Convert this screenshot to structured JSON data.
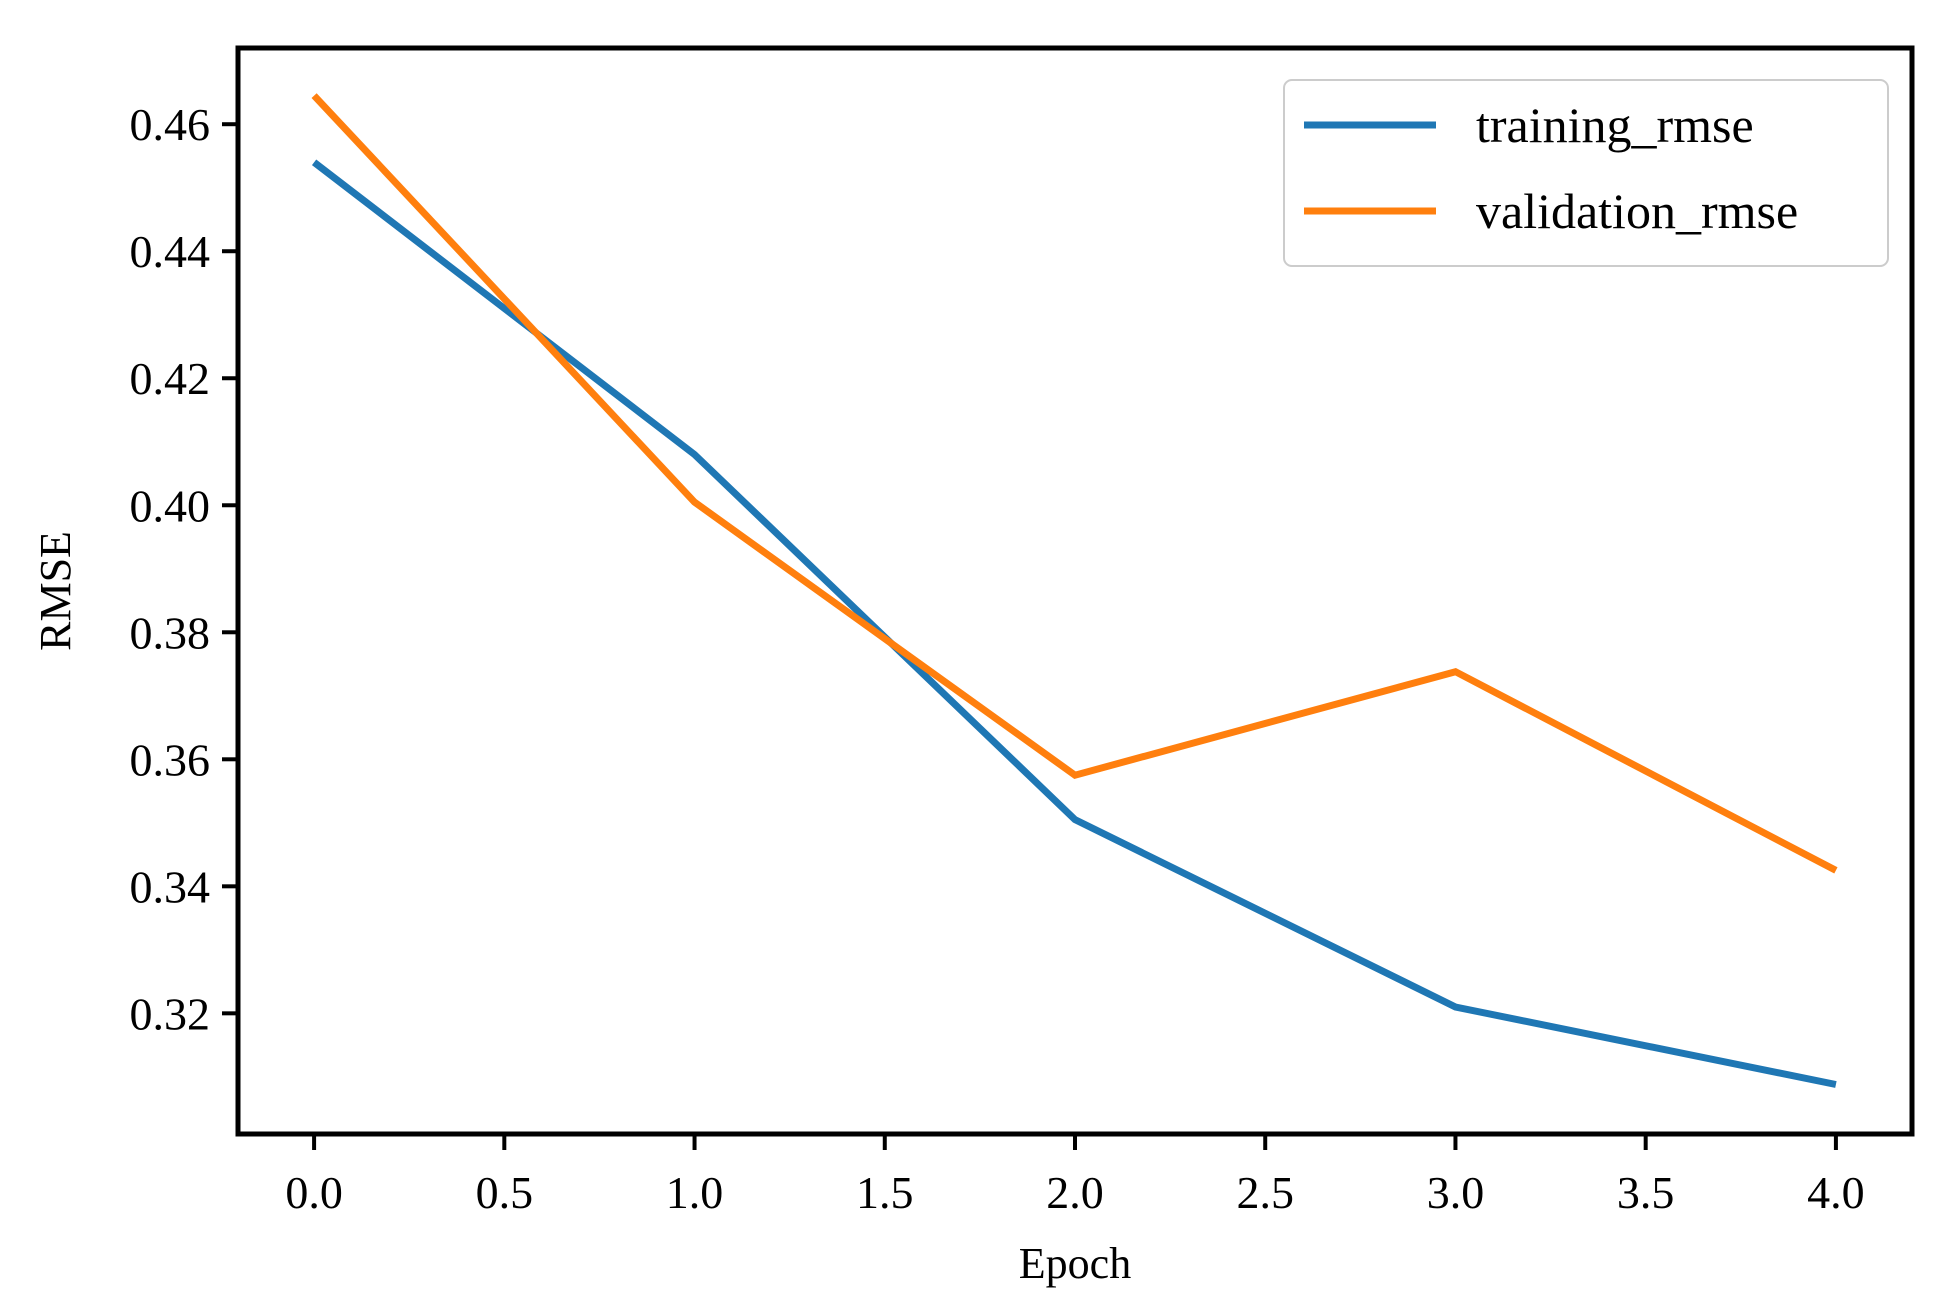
{
  "chart_data": {
    "type": "line",
    "title": "",
    "xlabel": "Epoch",
    "ylabel": "RMSE",
    "x": [
      0,
      1,
      2,
      3,
      4
    ],
    "xlim": [
      -0.2,
      4.2
    ],
    "ylim": [
      0.301,
      0.472
    ],
    "xticks": [
      0.0,
      0.5,
      1.0,
      1.5,
      2.0,
      2.5,
      3.0,
      3.5,
      4.0
    ],
    "xtick_labels": [
      "0.0",
      "0.5",
      "1.0",
      "1.5",
      "2.0",
      "2.5",
      "3.0",
      "3.5",
      "4.0"
    ],
    "yticks": [
      0.32,
      0.34,
      0.36,
      0.38,
      0.4,
      0.42,
      0.44,
      0.46
    ],
    "ytick_labels": [
      "0.32",
      "0.34",
      "0.36",
      "0.38",
      "0.40",
      "0.42",
      "0.44",
      "0.46"
    ],
    "grid": false,
    "legend_position": "top-right",
    "series": [
      {
        "name": "training_rmse",
        "color": "#1f77b4",
        "values": [
          0.454,
          0.408,
          0.3505,
          0.321,
          0.3088
        ]
      },
      {
        "name": "validation_rmse",
        "color": "#ff7f0e",
        "values": [
          0.4645,
          0.4005,
          0.3575,
          0.3738,
          0.3425
        ]
      }
    ]
  }
}
